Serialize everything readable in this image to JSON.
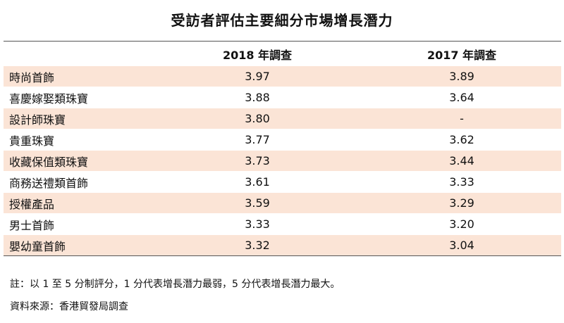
{
  "title": "受訪者評估主要細分市場增長潛力",
  "table": {
    "headers": [
      "",
      "2018 年調查",
      "2017 年調查"
    ],
    "rows": [
      {
        "category": "時尚首飾",
        "y2018": "3.97",
        "y2017": "3.89"
      },
      {
        "category": "喜慶嫁娶類珠寶",
        "y2018": "3.88",
        "y2017": "3.64"
      },
      {
        "category": "設計師珠寶",
        "y2018": "3.80",
        "y2017": "-"
      },
      {
        "category": "貴重珠寶",
        "y2018": "3.77",
        "y2017": "3.62"
      },
      {
        "category": "收藏保值類珠寶",
        "y2018": "3.73",
        "y2017": "3.44"
      },
      {
        "category": "商務送禮類首飾",
        "y2018": "3.61",
        "y2017": "3.33"
      },
      {
        "category": "授權產品",
        "y2018": "3.59",
        "y2017": "3.29"
      },
      {
        "category": "男士首飾",
        "y2018": "3.33",
        "y2017": "3.20"
      },
      {
        "category": "嬰幼童首飾",
        "y2018": "3.32",
        "y2017": "3.04"
      }
    ]
  },
  "notes": {
    "note": "註：以 1 至 5 分制評分，1 分代表增長潛力最弱，5 分代表增長潛力最大。",
    "source": "資料來源：香港貿發局調查"
  },
  "colors": {
    "row_shade": "#fbe4d6",
    "rule": "#555555"
  }
}
